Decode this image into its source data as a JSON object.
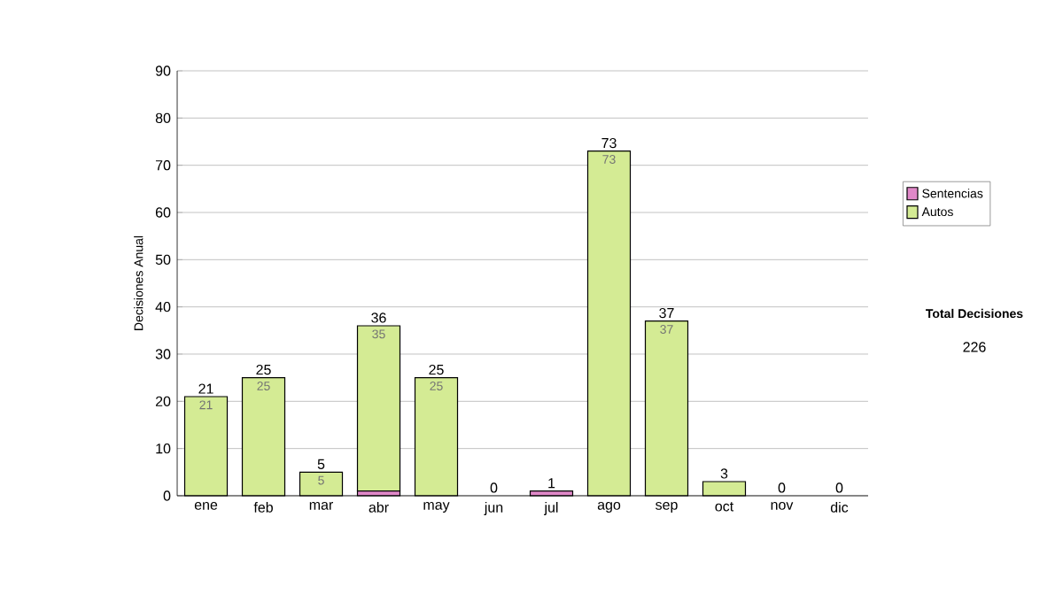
{
  "chart_data": {
    "type": "bar",
    "stacked": true,
    "ylabel": "Decisiones Anual",
    "categories": [
      "ene",
      "feb",
      "mar",
      "abr",
      "may",
      "jun",
      "jul",
      "ago",
      "sep",
      "oct",
      "nov",
      "dic"
    ],
    "series": [
      {
        "name": "Sentencias",
        "color": "#e088c8",
        "values": [
          0,
          0,
          0,
          1,
          0,
          0,
          1,
          0,
          0,
          0,
          0,
          0
        ]
      },
      {
        "name": "Autos",
        "color": "#d4eb94",
        "values": [
          21,
          25,
          5,
          35,
          25,
          0,
          0,
          73,
          37,
          3,
          0,
          0
        ],
        "value_labels": [
          "21",
          "25",
          "5",
          "35",
          "25",
          null,
          null,
          "73",
          "37",
          null,
          null,
          null
        ]
      }
    ],
    "totals": [
      "21",
      "25",
      "5",
      "36",
      "25",
      "0",
      "1",
      "73",
      "37",
      "3",
      "0",
      "0"
    ],
    "ylim": [
      0,
      90
    ],
    "yticks": [
      0,
      10,
      20,
      30,
      40,
      50,
      60,
      70,
      80,
      90
    ],
    "grid": "y",
    "legend": "right",
    "annotations": [
      "Total Decisiones",
      "226"
    ]
  }
}
